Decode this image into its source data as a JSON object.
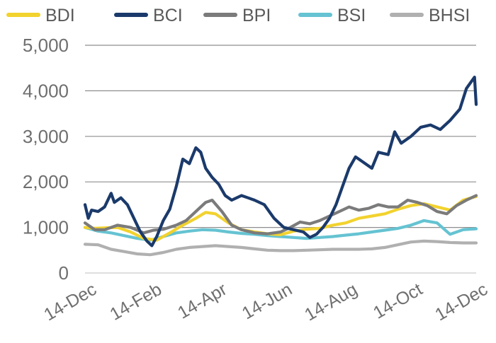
{
  "chart_data": {
    "type": "line",
    "title": "",
    "xlabel": "",
    "ylabel": "",
    "ylim": [
      0,
      5000
    ],
    "y_ticks": [
      0,
      1000,
      2000,
      3000,
      4000,
      5000
    ],
    "y_tick_labels": [
      "0",
      "1,000",
      "2,000",
      "3,000",
      "4,000",
      "5,000"
    ],
    "x_range": [
      0,
      12
    ],
    "x_ticks": [
      0,
      2,
      4,
      6,
      8,
      10,
      12
    ],
    "x_tick_labels": [
      "14-Dec",
      "14-Feb",
      "14-Apr",
      "14-Jun",
      "14-Aug",
      "14-Oct",
      "14-Dec"
    ],
    "grid": "horizontal",
    "legend_position": "top",
    "series": [
      {
        "name": "BDI",
        "color": "#f2d22e",
        "x": [
          0,
          0.3,
          0.6,
          1,
          1.4,
          1.8,
          2.2,
          2.6,
          3,
          3.4,
          3.7,
          4,
          4.4,
          4.8,
          5.2,
          5.6,
          6,
          6.4,
          6.8,
          7.2,
          7.6,
          8,
          8.4,
          8.8,
          9.2,
          9.6,
          10,
          10.4,
          10.8,
          11.2,
          11.6,
          12
        ],
        "values": [
          1000,
          980,
          990,
          1000,
          900,
          760,
          720,
          880,
          1050,
          1200,
          1330,
          1300,
          1100,
          950,
          900,
          860,
          840,
          920,
          960,
          980,
          1050,
          1100,
          1200,
          1250,
          1300,
          1400,
          1480,
          1520,
          1450,
          1380,
          1600,
          1680
        ]
      },
      {
        "name": "BCI",
        "color": "#1b3a6b",
        "x": [
          0,
          0.1,
          0.2,
          0.4,
          0.6,
          0.8,
          0.9,
          1.1,
          1.3,
          1.5,
          1.7,
          1.9,
          2.05,
          2.2,
          2.4,
          2.6,
          2.8,
          3.0,
          3.2,
          3.4,
          3.55,
          3.7,
          3.9,
          4.1,
          4.3,
          4.5,
          4.8,
          5.0,
          5.2,
          5.5,
          5.8,
          6.1,
          6.4,
          6.7,
          6.9,
          7.1,
          7.3,
          7.5,
          7.7,
          7.9,
          8.1,
          8.3,
          8.5,
          8.8,
          9.0,
          9.3,
          9.5,
          9.7,
          10.0,
          10.3,
          10.6,
          10.9,
          11.2,
          11.5,
          11.7,
          11.85,
          11.95,
          12
        ],
        "values": [
          1500,
          1200,
          1380,
          1350,
          1450,
          1750,
          1550,
          1650,
          1500,
          1200,
          900,
          700,
          600,
          800,
          1150,
          1400,
          1900,
          2500,
          2400,
          2750,
          2650,
          2300,
          2100,
          1950,
          1700,
          1600,
          1700,
          1650,
          1600,
          1500,
          1200,
          1000,
          950,
          900,
          780,
          850,
          1000,
          1200,
          1500,
          1900,
          2300,
          2550,
          2450,
          2300,
          2650,
          2600,
          3100,
          2850,
          3000,
          3200,
          3250,
          3150,
          3350,
          3600,
          4050,
          4200,
          4300,
          3700
        ]
      },
      {
        "name": "BPI",
        "color": "#7b7b7b",
        "x": [
          0,
          0.3,
          0.6,
          1,
          1.4,
          1.8,
          2.1,
          2.4,
          2.8,
          3.1,
          3.4,
          3.7,
          3.9,
          4.2,
          4.5,
          4.8,
          5.2,
          5.6,
          6,
          6.3,
          6.6,
          6.9,
          7.2,
          7.5,
          7.8,
          8.1,
          8.4,
          8.7,
          9,
          9.3,
          9.6,
          9.9,
          10.2,
          10.5,
          10.8,
          11.1,
          11.4,
          11.7,
          12
        ],
        "values": [
          1100,
          950,
          950,
          1050,
          1000,
          880,
          940,
          960,
          1050,
          1150,
          1350,
          1550,
          1600,
          1350,
          1050,
          950,
          880,
          860,
          900,
          1000,
          1120,
          1080,
          1150,
          1250,
          1350,
          1450,
          1380,
          1420,
          1500,
          1450,
          1450,
          1600,
          1550,
          1480,
          1350,
          1300,
          1480,
          1600,
          1700
        ]
      },
      {
        "name": "BSI",
        "color": "#65c3d2",
        "x": [
          0,
          0.4,
          0.8,
          1.2,
          1.6,
          2,
          2.4,
          2.8,
          3.2,
          3.6,
          4,
          4.4,
          4.8,
          5.2,
          5.6,
          6,
          6.4,
          6.8,
          7.2,
          7.6,
          8,
          8.4,
          8.8,
          9.2,
          9.6,
          10,
          10.4,
          10.8,
          11.2,
          11.6,
          12
        ],
        "values": [
          1000,
          920,
          880,
          820,
          760,
          720,
          800,
          880,
          920,
          950,
          940,
          900,
          870,
          850,
          820,
          800,
          780,
          760,
          780,
          800,
          830,
          860,
          900,
          940,
          980,
          1050,
          1150,
          1100,
          850,
          950,
          970
        ]
      },
      {
        "name": "BHSI",
        "color": "#b0b0b0",
        "x": [
          0,
          0.4,
          0.8,
          1.2,
          1.6,
          2,
          2.4,
          2.8,
          3.2,
          3.6,
          4,
          4.4,
          4.8,
          5.2,
          5.6,
          6,
          6.4,
          6.8,
          7.2,
          7.6,
          8,
          8.4,
          8.8,
          9.2,
          9.6,
          10,
          10.4,
          10.8,
          11.2,
          11.6,
          12
        ],
        "values": [
          630,
          620,
          520,
          470,
          420,
          400,
          450,
          520,
          560,
          580,
          600,
          580,
          560,
          530,
          500,
          490,
          490,
          500,
          510,
          520,
          520,
          520,
          530,
          560,
          620,
          680,
          700,
          690,
          670,
          660,
          660
        ]
      }
    ]
  }
}
